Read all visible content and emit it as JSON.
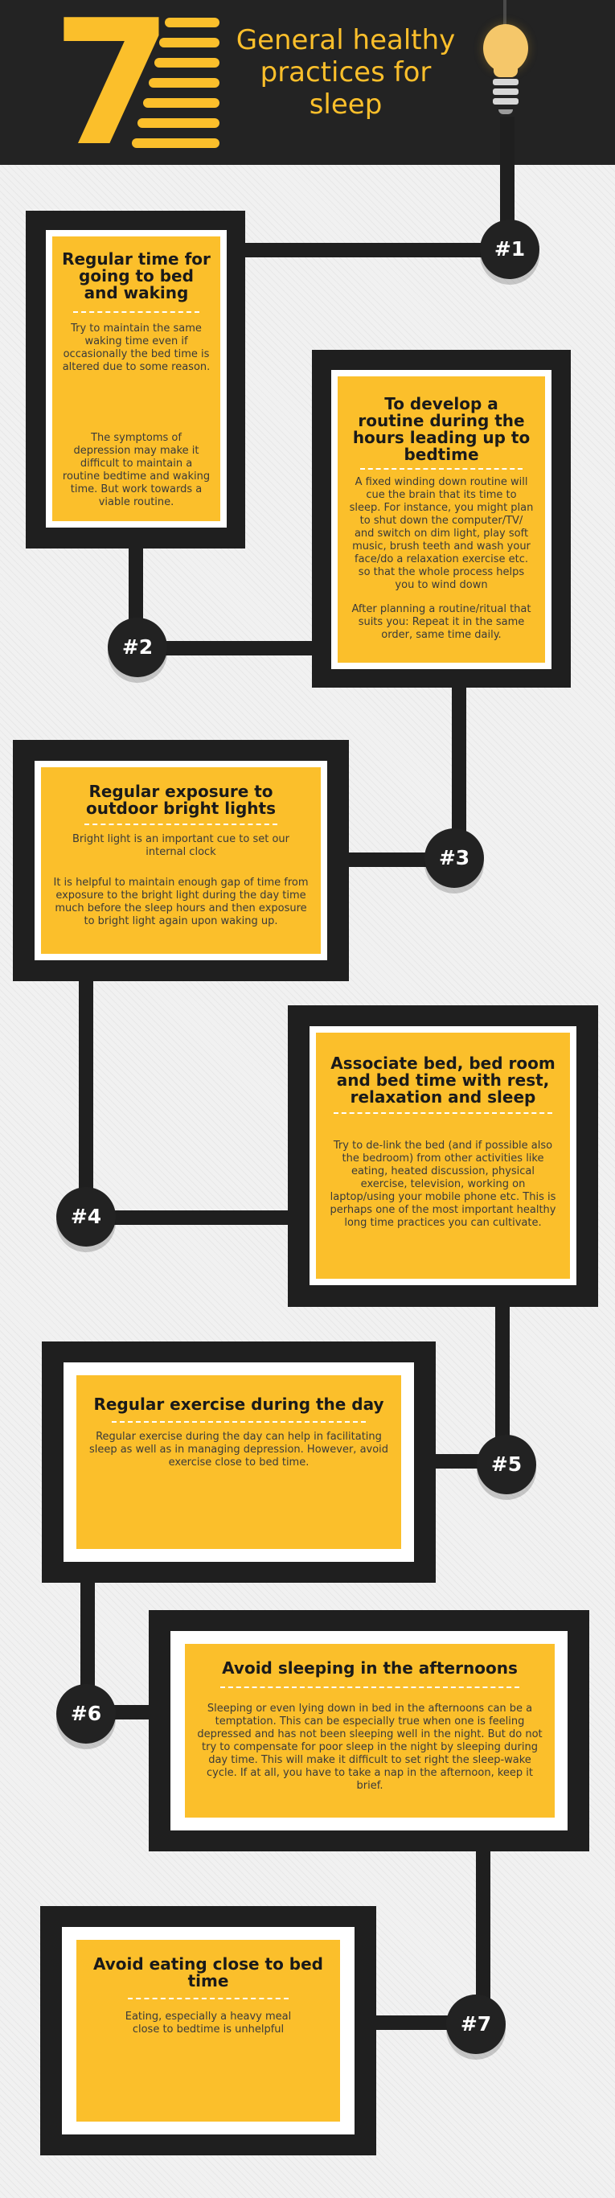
{
  "header": {
    "number": "7",
    "title": "General healthy practices for sleep"
  },
  "colors": {
    "accent": "#fbbf2b",
    "dark": "#232323",
    "card_text": "#3a3a3a"
  },
  "icons": {
    "header": "light-bulb-icon"
  },
  "steps": [
    {
      "badge": "#1",
      "title": "Regular time for going to bed and waking",
      "p1": "Try  to  maintain the same waking time even if occasionally the bed time is altered due to some reason.",
      "p2": "The symptoms of depression may make it difficult to maintain a routine bedtime and waking time. But work towards a viable routine."
    },
    {
      "badge": "#2",
      "title": "To develop a routine during the hours leading up to bedtime",
      "p1": "A fixed   winding down routine will cue the brain that its time to sleep. For instance, you might plan to shut down the computer/TV/ and switch on dim light, play soft music, brush teeth and wash your face/do a relaxation exercise etc. so that the whole process helps you to wind down",
      "p2": "After planning a routine/ritual that suits you: Repeat it in the same order, same time daily."
    },
    {
      "badge": "#3",
      "title": "Regular exposure to outdoor bright lights",
      "p1": "Bright light is an important cue to set our internal clock",
      "p2": "It is helpful to maintain enough gap of time from exposure to the bright light during the day time much before the sleep hours and then exposure to bright light again upon waking up."
    },
    {
      "badge": "#4",
      "title": "Associate bed, bed room and bed time with rest, relaxation and sleep",
      "p1": "Try to de-link the bed (and if possible also the bedroom) from other activities like eating, heated discussion, physical exercise, television, working on laptop/using your mobile phone etc. This is perhaps one of the most important healthy long time practices you can cultivate."
    },
    {
      "badge": "#5",
      "title": "Regular exercise during the day",
      "p1": "Regular exercise during the day can help in facilitating sleep as well as in managing depression. However, avoid exercise close to bed time."
    },
    {
      "badge": "#6",
      "title": "Avoid sleeping in the afternoons",
      "p1": "Sleeping or even lying down in bed in the afternoons can be a temptation. This can be especially true when one is feeling depressed and has not been sleeping well in the night. But do not try to compensate for poor sleep in the night by sleeping during day time. This will make it difficult to set right the sleep-wake cycle. If at all, you have to take a nap in the afternoon, keep it brief."
    },
    {
      "badge": "#7",
      "title": "Avoid eating close to bed time",
      "p1": "Eating, especially a heavy meal close to bedtime is unhelpful"
    }
  ]
}
